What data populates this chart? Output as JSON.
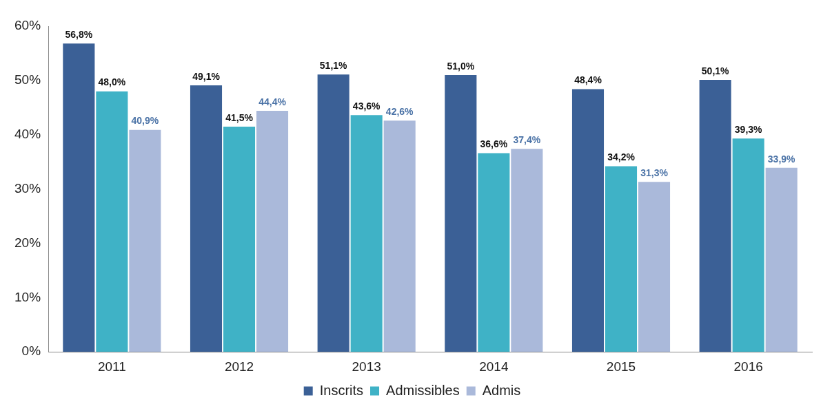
{
  "chart_data": {
    "type": "bar",
    "categories": [
      "2011",
      "2012",
      "2013",
      "2014",
      "2015",
      "2016"
    ],
    "series": [
      {
        "name": "Inscrits",
        "color": "#3b6096",
        "values": [
          56.8,
          49.1,
          51.1,
          51.0,
          48.4,
          50.1
        ],
        "value_labels": [
          "56,8%",
          "49,1%",
          "51,1%",
          "51,0%",
          "48,4%",
          "50,1%"
        ]
      },
      {
        "name": "Admissibles",
        "color": "#3fb2c6",
        "values": [
          48.0,
          41.5,
          43.6,
          36.6,
          34.2,
          39.3
        ],
        "value_labels": [
          "48,0%",
          "41,5%",
          "43,6%",
          "36,6%",
          "34,2%",
          "39,3%"
        ]
      },
      {
        "name": "Admis",
        "color": "#aab9da",
        "values": [
          40.9,
          44.4,
          42.6,
          37.4,
          31.3,
          33.9
        ],
        "value_labels": [
          "40,9%",
          "44,4%",
          "42,6%",
          "37,4%",
          "31,3%",
          "33,9%"
        ]
      }
    ],
    "ylim": [
      0,
      60
    ],
    "yticks": [
      {
        "value": 0,
        "label": "0%"
      },
      {
        "value": 10,
        "label": "10%"
      },
      {
        "value": 20,
        "label": "20%"
      },
      {
        "value": 30,
        "label": "30%"
      },
      {
        "value": 40,
        "label": "40%"
      },
      {
        "value": 50,
        "label": "50%"
      },
      {
        "value": 60,
        "label": "60%"
      }
    ],
    "grid": false,
    "legend": "bottom"
  }
}
